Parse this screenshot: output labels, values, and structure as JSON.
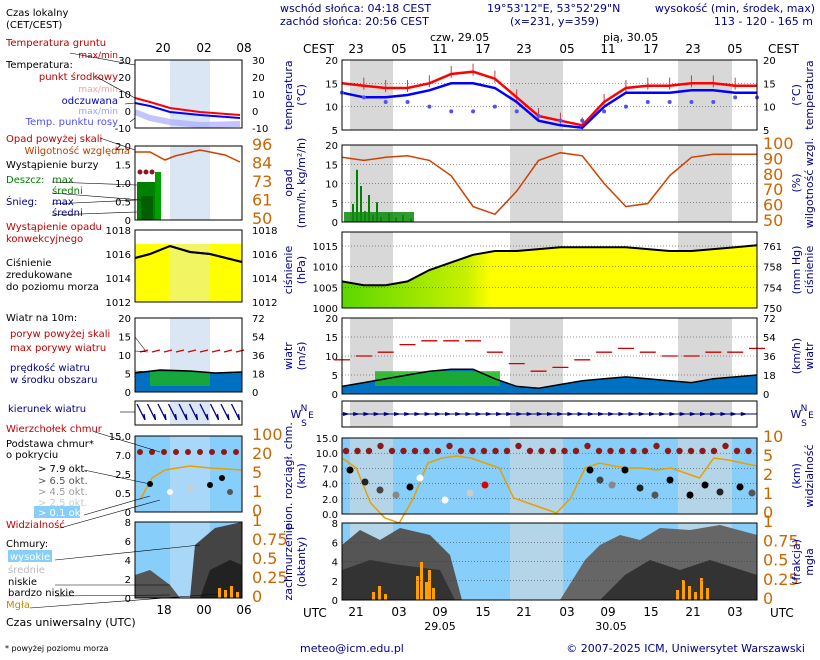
{
  "header": {
    "sunrise": "wschód słońca: 04:18 CEST",
    "sunset": "zachód słońca: 20:56 CEST",
    "coords": "19°53'12\"E, 53°52'29\"N",
    "grid": "(x=231, y=359)",
    "elev_label": "wysokość (min, środek, max)",
    "elev_values": "113 - 120 - 165 m"
  },
  "time": {
    "tz_top": "CEST",
    "tz_bottom": "UTC",
    "top_hours": [
      "23",
      "05",
      "11",
      "17",
      "23",
      "05",
      "11",
      "17",
      "23",
      "05"
    ],
    "bottom_hours": [
      "21",
      "03",
      "09",
      "15",
      "21",
      "03",
      "09",
      "15",
      "21",
      "03"
    ],
    "day1_top": "czw, 29.05",
    "day2_top": "pią, 30.05",
    "day1_bottom": "29.05",
    "day2_bottom": "30.05"
  },
  "legend": {
    "czas_lokalny": "Czas lokalny",
    "cet": "(CET/CEST)",
    "local_hours": [
      "20",
      "02",
      "08"
    ],
    "temp_gruntu": "Temperatura gruntu",
    "max_min": "max/min",
    "temperatura": "Temperatura:",
    "punkt_srodkowy": "punkt środkowy",
    "max_min2": "max/min",
    "odczuwana": "odczuwana",
    "max_min3": "max/min",
    "temp_rosy": "Temp. punktu rosy",
    "opad_powyzej": "Opad powyżej skali",
    "wilgotnosc": "Wilgotność względna",
    "burza": "Wystąpienie burzy",
    "deszcz": "Deszcz:",
    "deszcz_max": "max",
    "deszcz_sr": "średni",
    "snieg": "Śnieg:",
    "snieg_max": "max",
    "snieg_sr": "średni",
    "wyst_opadu": "Wystąpienie opadu",
    "konwekcyjnego": "konwekcyjnego",
    "cisnienie": "Ciśnienie",
    "zredukowane": "zredukowane",
    "do_poziomu": "do poziomu morza",
    "wiatr_10m": "Wiatr na 10m:",
    "poryw_pow": "poryw powyżej skali",
    "max_porywy": "max porywy wiatru",
    "predkosc": "prędkość wiatru",
    "w_srodku": "w środku obszaru",
    "kierunek": "kierunek wiatru",
    "wierzcholek": "Wierzchołek chmur",
    "podstawa": "Podstawa chmur*",
    "o_pokryciu": "o pokryciu",
    "ok79": "> 7.9 okt.",
    "ok65": "> 6.5 okt.",
    "ok45": "> 4.5 okt.",
    "ok25": "> 2.5 okt.",
    "ok01": "> 0.1 okt.",
    "widzialnosc": "Widzialność",
    "chmury": "Chmury:",
    "wysokie": "wysokie",
    "srednie": "średnie",
    "niskie": "niskie",
    "bardzo_niskie": "bardzo niskie",
    "mgla": "Mgła",
    "czas_uniw": "Czas uniwersalny (UTC)",
    "utc_hours": [
      "18",
      "00",
      "06"
    ],
    "footnote": "* powyżej poziomu morza"
  },
  "panel_labels": {
    "temp_l": "temperatura",
    "temp_l2": "(°C)",
    "temp_r": "(°C)",
    "temp_r2": "temperatura",
    "opad_l": "opad",
    "opad_l2": "(mm/h, kg/m²/h)",
    "opad_r": "(%)",
    "opad_r2": "wilgotność wzgl.",
    "pres_l": "ciśnienie",
    "pres_l2": "(hPa)",
    "pres_r": "(mm Hg)",
    "pres_r2": "ciśnienie",
    "wind_l": "wiatr",
    "wind_l2": "(m/s)",
    "wind_r": "(km/h)",
    "wind_r2": "wiatr",
    "dir_ne": "N",
    "dir_w": "W",
    "dir_s": "S",
    "dir_e": "E",
    "cloud_l": "pion. rozciągł. chm.",
    "cloud_l2": "(km)",
    "cloud_r": "(km)",
    "cloud_r2": "widzialność",
    "cov_l": "zachmurzenie",
    "cov_l2": "(oktanty)",
    "cov_r": "(frakcja)",
    "cov_r2": "mgła"
  },
  "axes": {
    "temp_left": [
      "20",
      "15",
      "10",
      "5"
    ],
    "temp_right": [
      "20",
      "15",
      "10",
      "5"
    ],
    "leg_temp": [
      "30",
      "20",
      "10",
      "0",
      "-10"
    ],
    "opad_left": [
      "2.0",
      "1.5",
      "1.0",
      "0.5",
      "0"
    ],
    "opad_right": [
      "100",
      "90",
      "80",
      "70",
      "60",
      "50"
    ],
    "leg_opad_l": [
      "2.0",
      "1.5",
      "1.0",
      "0.5",
      "0"
    ],
    "leg_opad_r": [
      "96",
      "84",
      "73",
      "61",
      "50"
    ],
    "pres_left": [
      "1015",
      "1010",
      "1005",
      "1000"
    ],
    "pres_right": [
      "761",
      "758",
      "754",
      "750"
    ],
    "leg_pres_l": [
      "1018",
      "1016",
      "1014",
      "1012"
    ],
    "leg_pres_r": [
      "1018",
      "1016",
      "1014",
      "1012"
    ],
    "wind_left": [
      "20",
      "15",
      "10",
      "5",
      "0"
    ],
    "wind_right": [
      "72",
      "54",
      "36",
      "18",
      "0"
    ],
    "leg_wind_l": [
      "20",
      "15",
      "10",
      "5",
      "0"
    ],
    "leg_wind_r": [
      "72",
      "54",
      "36",
      "18",
      "0"
    ],
    "cloud_left": [
      "15.0",
      "10.0",
      "7.0",
      "4.0",
      "2.0",
      "0.0"
    ],
    "cloud_right": [
      "10",
      "5",
      "2",
      "1",
      "0"
    ],
    "leg_cloud_l": [
      "15.0",
      "7.0",
      "2.5",
      "0.5",
      "0"
    ],
    "leg_cloud_r": [
      "100",
      "20",
      "5",
      "1",
      "0"
    ],
    "cov_left": [
      "8",
      "6",
      "4",
      "2",
      "0"
    ],
    "cov_right": [
      "1",
      "0.75",
      "0.5",
      "0.25",
      "0"
    ],
    "leg_cov_l": [
      "8",
      "6",
      "4",
      "2",
      "0"
    ],
    "leg_cov_r": [
      "1",
      "0.75",
      "0.5",
      "0.25",
      "0"
    ]
  },
  "footer": {
    "email": "meteo@icm.edu.pl",
    "copyright": "© 2007-2025 ICM, Uniwersytet Warszawski"
  },
  "colors": {
    "temp": "#ff0000",
    "feel": "#0000ff",
    "dew": "#5050ff",
    "humidity": "#d04000",
    "pressure_fill": "#ffff00",
    "pressure_fill2": "#5bd700",
    "wind_fill": "#0070c0",
    "sky": "#87cefa",
    "night": "#d8d8d8"
  },
  "chart_data": [
    {
      "type": "line",
      "title": "temperatura (°C)",
      "x": [
        "21",
        "00",
        "03",
        "06",
        "09",
        "12",
        "15",
        "18",
        "21",
        "00",
        "03",
        "06",
        "09",
        "12",
        "15",
        "18",
        "21",
        "00",
        "03",
        "06"
      ],
      "ylim": [
        5,
        20
      ],
      "series": [
        {
          "name": "punkt środkowy",
          "values": [
            15,
            14.5,
            14,
            14,
            15,
            17,
            17.5,
            16,
            12,
            8,
            7,
            6,
            11,
            14,
            14.5,
            14.5,
            15,
            15,
            14.5,
            14.5
          ]
        },
        {
          "name": "odczuwana",
          "values": [
            13,
            12,
            12,
            12.5,
            13.5,
            15,
            15,
            14,
            11,
            7,
            6,
            5.5,
            10,
            13,
            13,
            13,
            13.5,
            13.5,
            13,
            13
          ]
        },
        {
          "name": "Temp. punktu rosy",
          "values": [
            13,
            12,
            11,
            11,
            10,
            9,
            9,
            10,
            9,
            8,
            7,
            7,
            9,
            10,
            11,
            11,
            11,
            11,
            12,
            12
          ]
        }
      ]
    },
    {
      "type": "line",
      "title": "opad (mm/h, kg/m²/h) / wilgotność wzgl. (%)",
      "x": [
        "21",
        "00",
        "03",
        "06",
        "09",
        "12",
        "15",
        "18",
        "21",
        "00",
        "03",
        "06",
        "09",
        "12",
        "15",
        "18",
        "21",
        "00",
        "03",
        "06"
      ],
      "ylim": [
        0,
        20
      ],
      "series": [
        {
          "name": "wilgotność względna",
          "values": [
            92,
            90,
            92,
            93,
            90,
            80,
            60,
            55,
            70,
            90,
            95,
            93,
            75,
            60,
            62,
            80,
            92,
            94,
            94,
            94
          ]
        }
      ]
    },
    {
      "type": "area",
      "title": "ciśnienie (hPa)",
      "x": [
        "21",
        "00",
        "03",
        "06",
        "09",
        "12",
        "15",
        "18",
        "21",
        "00",
        "03",
        "06",
        "09",
        "12",
        "15",
        "18",
        "21",
        "00",
        "03",
        "06"
      ],
      "ylim": [
        1000,
        1020
      ],
      "series": [
        {
          "name": "ciśnienie",
          "values": [
            1007,
            1006,
            1006,
            1007,
            1010,
            1012,
            1014,
            1015,
            1015,
            1015.5,
            1016,
            1016,
            1016,
            1016,
            1015.5,
            1015,
            1015,
            1015.5,
            1016,
            1016.5
          ]
        }
      ]
    },
    {
      "type": "area",
      "title": "wiatr (m/s)",
      "x": [
        "21",
        "00",
        "03",
        "06",
        "09",
        "12",
        "15",
        "18",
        "21",
        "00",
        "03",
        "06",
        "09",
        "12",
        "15",
        "18",
        "21",
        "00",
        "03",
        "06"
      ],
      "ylim": [
        0,
        20
      ],
      "series": [
        {
          "name": "prędkość wiatru",
          "values": [
            2,
            3,
            4,
            5,
            6,
            6.5,
            6.5,
            4,
            2,
            1.5,
            2.5,
            3.5,
            4,
            4.5,
            4,
            3.5,
            3,
            4,
            4.5,
            5
          ]
        },
        {
          "name": "max porywy wiatru",
          "values": [
            9,
            10,
            11,
            13,
            14,
            14,
            14,
            11,
            8,
            6,
            7,
            9,
            11,
            12,
            11,
            10,
            10,
            11,
            11,
            12
          ]
        }
      ]
    }
  ]
}
